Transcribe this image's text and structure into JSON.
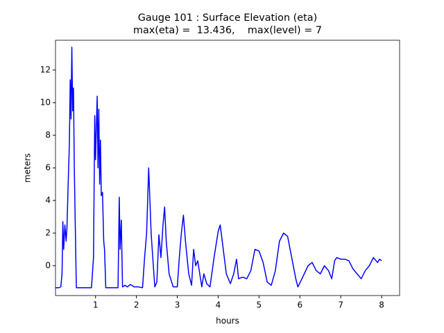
{
  "chart_data": {
    "type": "line",
    "title": "Gauge 101 : Surface Elevation (eta)",
    "subtitle": "max(eta) =  13.436,    max(level) = 7",
    "x_label": "hours",
    "y_label": "meters",
    "color": "#0000ff",
    "xlim": [
      0.02,
      8.44
    ],
    "ylim": [
      -1.83,
      13.83
    ],
    "xticks": [
      1,
      2,
      3,
      4,
      5,
      6,
      7,
      8
    ],
    "yticks": [
      0,
      2,
      4,
      6,
      8,
      10,
      12
    ],
    "x": [
      0.02,
      0.1,
      0.15,
      0.18,
      0.2,
      0.22,
      0.25,
      0.28,
      0.3,
      0.33,
      0.36,
      0.38,
      0.4,
      0.42,
      0.44,
      0.46,
      0.48,
      0.5,
      0.53,
      0.9,
      0.95,
      0.98,
      1.0,
      1.02,
      1.04,
      1.06,
      1.08,
      1.1,
      1.12,
      1.14,
      1.17,
      1.2,
      1.22,
      1.25,
      1.55,
      1.58,
      1.6,
      1.63,
      1.66,
      1.72,
      1.78,
      1.85,
      1.95,
      2.05,
      2.15,
      2.2,
      2.25,
      2.3,
      2.33,
      2.36,
      2.4,
      2.45,
      2.5,
      2.55,
      2.6,
      2.65,
      2.69,
      2.73,
      2.8,
      2.9,
      3.0,
      3.05,
      3.1,
      3.15,
      3.2,
      3.28,
      3.35,
      3.4,
      3.45,
      3.5,
      3.55,
      3.6,
      3.65,
      3.72,
      3.8,
      3.9,
      4.0,
      4.05,
      4.1,
      4.2,
      4.3,
      4.38,
      4.45,
      4.5,
      4.6,
      4.7,
      4.8,
      4.9,
      5.0,
      5.1,
      5.2,
      5.3,
      5.4,
      5.5,
      5.6,
      5.7,
      5.8,
      5.9,
      5.95,
      6.05,
      6.2,
      6.3,
      6.4,
      6.5,
      6.6,
      6.7,
      6.78,
      6.85,
      6.9,
      7.0,
      7.1,
      7.2,
      7.3,
      7.4,
      7.5,
      7.6,
      7.7,
      7.8,
      7.9,
      7.95,
      8.0
    ],
    "values": [
      -1.35,
      -1.35,
      -1.3,
      -0.5,
      2.7,
      1.0,
      2.5,
      1.5,
      2.3,
      5,
      7.5,
      11.4,
      9,
      13.4,
      9.5,
      10.9,
      6,
      3,
      -1.35,
      -1.35,
      0.5,
      9.2,
      6.5,
      8.5,
      10.4,
      6,
      9.6,
      5,
      7.7,
      4.3,
      4.5,
      1.5,
      1.0,
      -1.35,
      -1.35,
      4.2,
      1.0,
      2.8,
      -1.3,
      -1.2,
      -1.3,
      -1.15,
      -1.3,
      -1.3,
      -1.35,
      0.5,
      2,
      6.0,
      4,
      2,
      0.5,
      -1.3,
      -1.0,
      1.9,
      0.5,
      2.5,
      3.6,
      1.5,
      -0.5,
      -1.3,
      -1.3,
      0.5,
      2.0,
      3.1,
      1.5,
      -0.5,
      -1.2,
      1.0,
      0.0,
      0.3,
      -0.5,
      -1.3,
      -0.5,
      -1.1,
      -1.3,
      0.5,
      2.1,
      2.5,
      1.5,
      -0.5,
      -1.1,
      -0.5,
      0.4,
      -0.8,
      -0.7,
      -0.8,
      -0.3,
      1.0,
      0.9,
      0.2,
      -1.0,
      -1.2,
      -0.3,
      1.5,
      2.0,
      1.8,
      0.5,
      -0.8,
      -1.3,
      -0.8,
      0.0,
      0.2,
      -0.3,
      -0.5,
      0.0,
      -0.3,
      -0.8,
      0.3,
      0.5,
      0.4,
      0.4,
      0.3,
      -0.2,
      -0.5,
      -0.8,
      -0.3,
      0.0,
      0.5,
      0.2,
      0.4,
      0.3
    ]
  }
}
